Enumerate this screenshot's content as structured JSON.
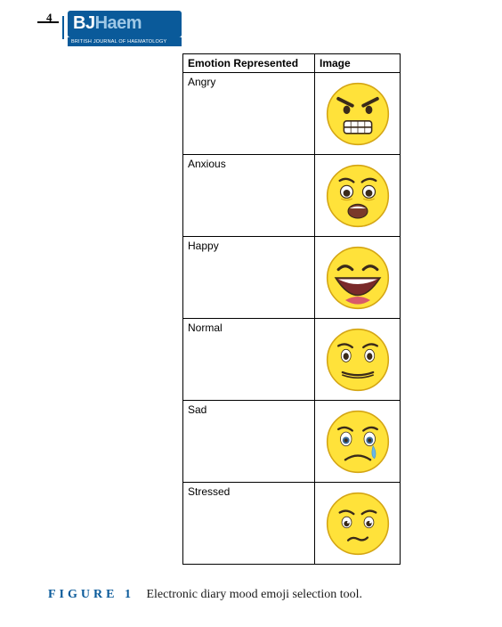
{
  "page_number": "4",
  "journal": {
    "logo_primary": "BJ",
    "logo_secondary": "Haem",
    "subtitle": "BRITISH JOURNAL OF HAEMATOLOGY",
    "brand_color": "#0a5a9a",
    "brand_light": "#9fc8e6"
  },
  "table": {
    "columns": [
      "Emotion Represented",
      "Image"
    ],
    "rows": [
      {
        "label": "Angry",
        "emoji": "angry"
      },
      {
        "label": "Anxious",
        "emoji": "anxious"
      },
      {
        "label": "Happy",
        "emoji": "happy"
      },
      {
        "label": "Normal",
        "emoji": "normal"
      },
      {
        "label": "Sad",
        "emoji": "sad"
      },
      {
        "label": "Stressed",
        "emoji": "stressed"
      }
    ],
    "border_color": "#000000",
    "label_fontsize": 12
  },
  "caption": {
    "label": "FIGURE 1",
    "text": "Electronic diary mood emoji selection tool."
  },
  "emoji_style": {
    "face_fill": "#ffe23a",
    "face_stroke": "#d4a514",
    "feature_color": "#3a2a1a",
    "tear_color": "#6ab8e8"
  }
}
